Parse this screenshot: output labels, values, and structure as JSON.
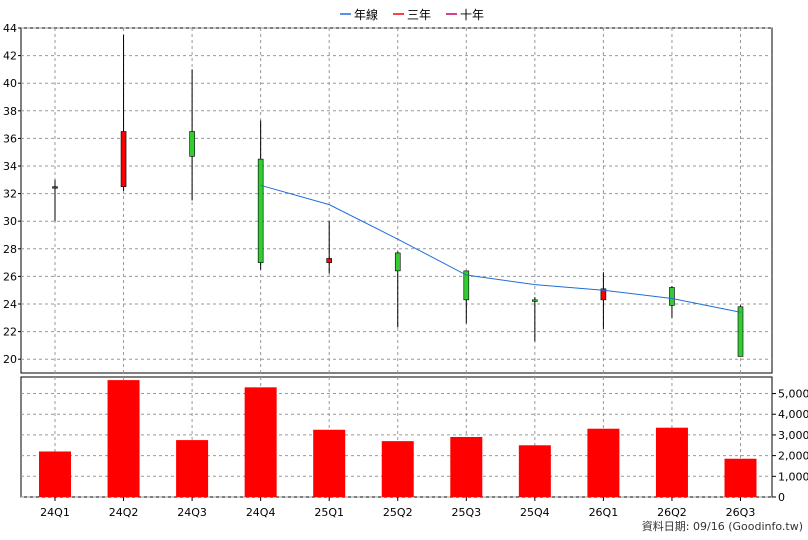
{
  "legend": [
    {
      "label": "年線",
      "color": "#1f6fd6"
    },
    {
      "label": "三年",
      "color": "#ff0000"
    },
    {
      "label": "十年",
      "color": "#cc0066"
    }
  ],
  "source_text": "資料日期: 09/16  (Goodinfo.tw)",
  "colors": {
    "up": "#ff0000",
    "down": "#33cc33",
    "volume": "#ff0000",
    "year_line": "#1f6fd6",
    "grid": "#999999"
  },
  "chart_data": [
    {
      "type": "candlestick",
      "categories": [
        "24Q1",
        "24Q2",
        "24Q3",
        "24Q4",
        "25Q1",
        "25Q2",
        "25Q3",
        "25Q4",
        "26Q1",
        "26Q2",
        "26Q3"
      ],
      "ylim": [
        19,
        44
      ],
      "yticks": [
        20,
        22,
        24,
        26,
        28,
        30,
        32,
        34,
        36,
        38,
        40,
        42,
        44
      ],
      "grid": true,
      "candles": [
        {
          "open": 32.5,
          "high": 33.0,
          "low": 30.0,
          "close": 32.5
        },
        {
          "open": 32.5,
          "high": 43.5,
          "low": 32.2,
          "close": 36.5
        },
        {
          "open": 36.5,
          "high": 41.0,
          "low": 31.5,
          "close": 34.7
        },
        {
          "open": 34.5,
          "high": 37.3,
          "low": 26.5,
          "close": 27.0
        },
        {
          "open": 27.0,
          "high": 30.0,
          "low": 26.2,
          "close": 27.3
        },
        {
          "open": 27.7,
          "high": 27.8,
          "low": 22.3,
          "close": 26.4
        },
        {
          "open": 26.4,
          "high": 26.4,
          "low": 22.6,
          "close": 24.3
        },
        {
          "open": 24.3,
          "high": 24.5,
          "low": 21.3,
          "close": 24.2
        },
        {
          "open": 24.3,
          "high": 26.3,
          "low": 22.2,
          "close": 25.1
        },
        {
          "open": 25.2,
          "high": 25.3,
          "low": 23.0,
          "close": 23.9
        },
        {
          "open": 23.8,
          "high": 23.9,
          "low": 20.2,
          "close": 20.2
        }
      ],
      "series": [
        {
          "name": "年線",
          "x": [
            "24Q4",
            "25Q1",
            "25Q2",
            "25Q3",
            "25Q4",
            "26Q1",
            "26Q2",
            "26Q3"
          ],
          "values": [
            32.6,
            31.2,
            28.7,
            26.1,
            25.4,
            25.0,
            24.4,
            23.4
          ]
        }
      ]
    },
    {
      "type": "bar",
      "categories": [
        "24Q1",
        "24Q2",
        "24Q3",
        "24Q4",
        "25Q1",
        "25Q2",
        "25Q3",
        "25Q4",
        "26Q1",
        "26Q2",
        "26Q3"
      ],
      "values": [
        2200,
        5650,
        2750,
        5300,
        3250,
        2700,
        2900,
        2500,
        3300,
        3350,
        1850
      ],
      "ylim": [
        0,
        5800
      ],
      "yticks": [
        0,
        1000,
        2000,
        3000,
        4000,
        5000
      ],
      "ytick_labels": [
        "0",
        "1,000",
        "2,000",
        "3,000",
        "4,000",
        "5,000"
      ],
      "grid": true
    }
  ]
}
